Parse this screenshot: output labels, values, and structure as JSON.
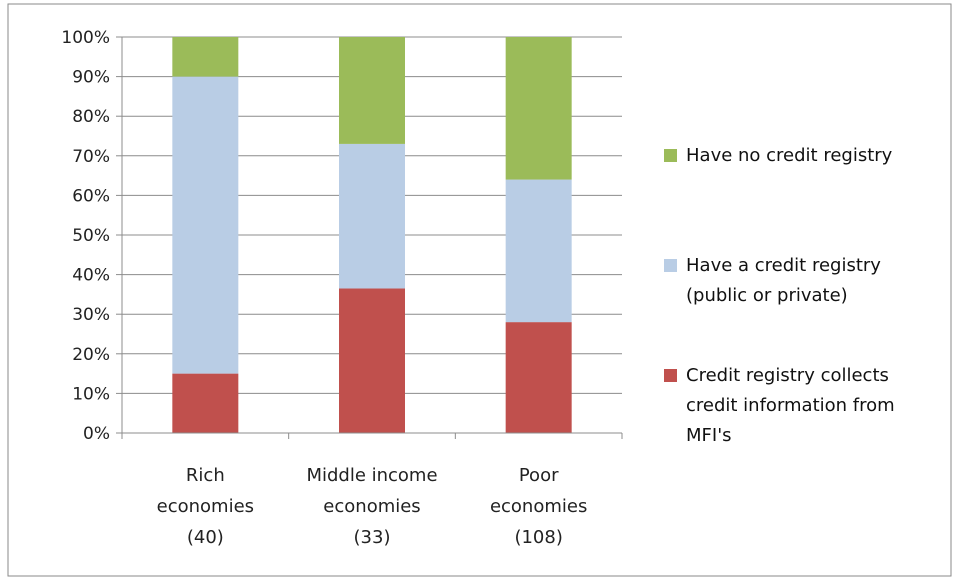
{
  "chart_data": {
    "type": "bar",
    "stacked": true,
    "title": "",
    "xlabel": "",
    "ylabel": "",
    "ylim": [
      0,
      100
    ],
    "y_tick_labels": [
      "0%",
      "10%",
      "20%",
      "30%",
      "40%",
      "50%",
      "60%",
      "70%",
      "80%",
      "90%",
      "100%"
    ],
    "grid": true,
    "legend_position": "right",
    "categories": [
      [
        "Rich",
        "economies",
        "(40)"
      ],
      [
        "Middle income",
        "economies",
        "(33)"
      ],
      [
        "Poor",
        "economies",
        "(108)"
      ]
    ],
    "series": [
      {
        "name": "Credit registry collects credit information from MFI's",
        "values": [
          15,
          36.5,
          28
        ],
        "color": "#c0504d",
        "legend_lines": [
          "Credit registry collects",
          "credit information from",
          "MFI's"
        ]
      },
      {
        "name": "Have a credit registry (public or private)",
        "values": [
          75,
          36.5,
          36
        ],
        "color": "#b9cde5",
        "legend_lines": [
          "Have a credit registry",
          "(public or private)"
        ]
      },
      {
        "name": "Have no credit registry",
        "values": [
          10,
          27,
          36
        ],
        "color": "#9bbb59",
        "legend_lines": [
          "Have no credit registry"
        ]
      }
    ]
  }
}
